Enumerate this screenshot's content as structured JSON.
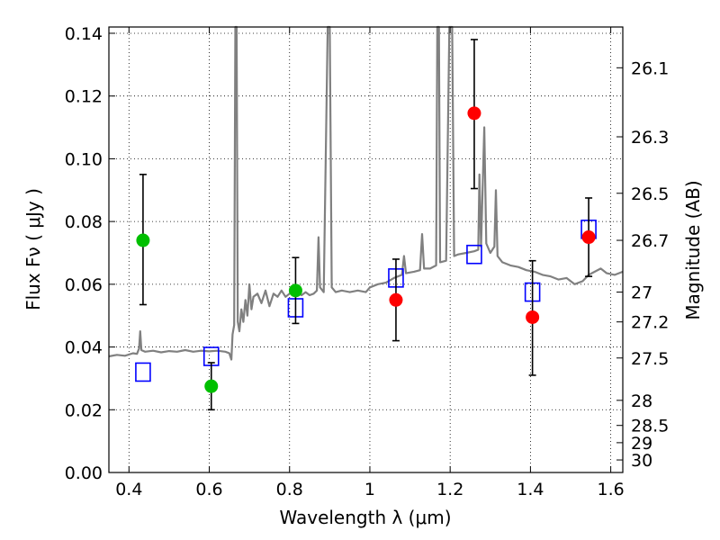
{
  "chart_data": {
    "type": "scatter",
    "title": "",
    "xlabel": "Wavelength  λ (μm)",
    "ylabel": "Flux  Fν  ( μJy )",
    "y2label": "Magnitude (AB)",
    "xlim": [
      0.35,
      1.63
    ],
    "ylim": [
      0.0,
      0.142
    ],
    "grid": true,
    "x_ticks": [
      {
        "value": 0.4,
        "label": "0.4"
      },
      {
        "value": 0.6,
        "label": "0.6"
      },
      {
        "value": 0.8,
        "label": "0.8"
      },
      {
        "value": 1.0,
        "label": "1"
      },
      {
        "value": 1.2,
        "label": "1.2"
      },
      {
        "value": 1.4,
        "label": "1.4"
      },
      {
        "value": 1.6,
        "label": "1.6"
      }
    ],
    "y_ticks": [
      {
        "value": 0.0,
        "label": "0.00"
      },
      {
        "value": 0.02,
        "label": "0.02"
      },
      {
        "value": 0.04,
        "label": "0.04"
      },
      {
        "value": 0.06,
        "label": "0.06"
      },
      {
        "value": 0.08,
        "label": "0.08"
      },
      {
        "value": 0.1,
        "label": "0.10"
      },
      {
        "value": 0.12,
        "label": "0.12"
      },
      {
        "value": 0.14,
        "label": "0.14"
      }
    ],
    "y2_ticks": [
      {
        "flux": 0.129,
        "label": "26.1"
      },
      {
        "flux": 0.107,
        "label": "26.3"
      },
      {
        "flux": 0.089,
        "label": "26.5"
      },
      {
        "flux": 0.074,
        "label": "26.7"
      },
      {
        "flux": 0.0575,
        "label": "27"
      },
      {
        "flux": 0.048,
        "label": "27.2"
      },
      {
        "flux": 0.0365,
        "label": "27.5"
      },
      {
        "flux": 0.023,
        "label": "28"
      },
      {
        "flux": 0.015,
        "label": "28.5"
      },
      {
        "flux": 0.0095,
        "label": "29"
      },
      {
        "flux": 0.004,
        "label": "30"
      }
    ],
    "series": [
      {
        "kind": "observed-green",
        "color": "#00bf00",
        "points": [
          {
            "x": 0.435,
            "y": 0.074,
            "err_lo": 0.0535,
            "err_hi": 0.095
          },
          {
            "x": 0.605,
            "y": 0.0275,
            "err_lo": 0.02,
            "err_hi": 0.035
          },
          {
            "x": 0.815,
            "y": 0.058,
            "err_lo": 0.0475,
            "err_hi": 0.0685
          }
        ]
      },
      {
        "kind": "observed-red",
        "color": "#ff0000",
        "points": [
          {
            "x": 1.065,
            "y": 0.055,
            "err_lo": 0.042,
            "err_hi": 0.068
          },
          {
            "x": 1.26,
            "y": 0.1145,
            "err_lo": 0.0905,
            "err_hi": 0.138
          },
          {
            "x": 1.405,
            "y": 0.0495,
            "err_lo": 0.031,
            "err_hi": 0.0675
          },
          {
            "x": 1.545,
            "y": 0.075,
            "err_lo": 0.0625,
            "err_hi": 0.0875
          }
        ]
      },
      {
        "kind": "model-squares",
        "color": "#0000ff",
        "points": [
          {
            "x": 0.435,
            "y": 0.032
          },
          {
            "x": 0.605,
            "y": 0.037
          },
          {
            "x": 0.815,
            "y": 0.0525
          },
          {
            "x": 1.065,
            "y": 0.062
          },
          {
            "x": 1.26,
            "y": 0.0695
          },
          {
            "x": 1.405,
            "y": 0.0575
          },
          {
            "x": 1.545,
            "y": 0.0775
          }
        ]
      }
    ],
    "spectrum": {
      "color": "#808080",
      "points": [
        [
          0.35,
          0.037
        ],
        [
          0.37,
          0.0375
        ],
        [
          0.39,
          0.0372
        ],
        [
          0.41,
          0.038
        ],
        [
          0.42,
          0.0378
        ],
        [
          0.425,
          0.0395
        ],
        [
          0.428,
          0.045
        ],
        [
          0.431,
          0.039
        ],
        [
          0.44,
          0.0385
        ],
        [
          0.46,
          0.0388
        ],
        [
          0.48,
          0.0383
        ],
        [
          0.5,
          0.0387
        ],
        [
          0.52,
          0.0385
        ],
        [
          0.54,
          0.039
        ],
        [
          0.56,
          0.0385
        ],
        [
          0.58,
          0.0388
        ],
        [
          0.6,
          0.0386
        ],
        [
          0.62,
          0.0388
        ],
        [
          0.64,
          0.0385
        ],
        [
          0.65,
          0.038
        ],
        [
          0.655,
          0.036
        ],
        [
          0.658,
          0.044
        ],
        [
          0.662,
          0.047
        ],
        [
          0.665,
          0.142
        ],
        [
          0.668,
          0.142
        ],
        [
          0.671,
          0.048
        ],
        [
          0.675,
          0.045
        ],
        [
          0.68,
          0.052
        ],
        [
          0.685,
          0.048
        ],
        [
          0.69,
          0.055
        ],
        [
          0.695,
          0.05
        ],
        [
          0.7,
          0.06
        ],
        [
          0.705,
          0.052
        ],
        [
          0.71,
          0.056
        ],
        [
          0.72,
          0.057
        ],
        [
          0.73,
          0.054
        ],
        [
          0.74,
          0.058
        ],
        [
          0.75,
          0.053
        ],
        [
          0.76,
          0.057
        ],
        [
          0.77,
          0.056
        ],
        [
          0.78,
          0.058
        ],
        [
          0.79,
          0.056
        ],
        [
          0.8,
          0.057
        ],
        [
          0.81,
          0.058
        ],
        [
          0.82,
          0.0575
        ],
        [
          0.83,
          0.0565
        ],
        [
          0.84,
          0.0575
        ],
        [
          0.85,
          0.0565
        ],
        [
          0.86,
          0.057
        ],
        [
          0.868,
          0.058
        ],
        [
          0.872,
          0.075
        ],
        [
          0.876,
          0.059
        ],
        [
          0.885,
          0.0575
        ],
        [
          0.895,
          0.142
        ],
        [
          0.9,
          0.142
        ],
        [
          0.905,
          0.059
        ],
        [
          0.915,
          0.0575
        ],
        [
          0.93,
          0.058
        ],
        [
          0.95,
          0.0575
        ],
        [
          0.97,
          0.058
        ],
        [
          0.99,
          0.0575
        ],
        [
          1.0,
          0.059
        ],
        [
          1.02,
          0.06
        ],
        [
          1.04,
          0.0605
        ],
        [
          1.06,
          0.062
        ],
        [
          1.08,
          0.063
        ],
        [
          1.085,
          0.069
        ],
        [
          1.09,
          0.0635
        ],
        [
          1.11,
          0.064
        ],
        [
          1.125,
          0.0645
        ],
        [
          1.13,
          0.076
        ],
        [
          1.135,
          0.065
        ],
        [
          1.15,
          0.065
        ],
        [
          1.165,
          0.066
        ],
        [
          1.168,
          0.142
        ],
        [
          1.172,
          0.142
        ],
        [
          1.175,
          0.067
        ],
        [
          1.19,
          0.0675
        ],
        [
          1.198,
          0.142
        ],
        [
          1.205,
          0.142
        ],
        [
          1.21,
          0.069
        ],
        [
          1.22,
          0.0695
        ],
        [
          1.24,
          0.07
        ],
        [
          1.26,
          0.0705
        ],
        [
          1.27,
          0.071
        ],
        [
          1.273,
          0.095
        ],
        [
          1.277,
          0.072
        ],
        [
          1.285,
          0.11
        ],
        [
          1.29,
          0.073
        ],
        [
          1.3,
          0.07
        ],
        [
          1.31,
          0.072
        ],
        [
          1.314,
          0.09
        ],
        [
          1.318,
          0.069
        ],
        [
          1.33,
          0.067
        ],
        [
          1.35,
          0.066
        ],
        [
          1.37,
          0.0655
        ],
        [
          1.39,
          0.0645
        ],
        [
          1.41,
          0.064
        ],
        [
          1.43,
          0.063
        ],
        [
          1.45,
          0.0625
        ],
        [
          1.47,
          0.0615
        ],
        [
          1.49,
          0.062
        ],
        [
          1.51,
          0.06
        ],
        [
          1.53,
          0.061
        ],
        [
          1.545,
          0.063
        ],
        [
          1.56,
          0.064
        ],
        [
          1.575,
          0.065
        ],
        [
          1.59,
          0.0635
        ],
        [
          1.61,
          0.063
        ],
        [
          1.63,
          0.064
        ]
      ]
    }
  }
}
